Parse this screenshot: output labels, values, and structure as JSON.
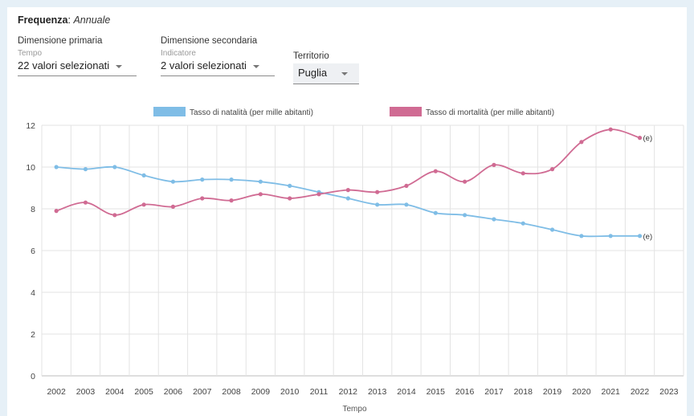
{
  "frequency": {
    "label": "Frequenza",
    "value": "Annuale"
  },
  "filters": {
    "primary": {
      "title": "Dimensione primaria",
      "subtitle": "Tempo",
      "selected": "22 valori selezionati"
    },
    "secondary": {
      "title": "Dimensione secondaria",
      "subtitle": "Indicatore",
      "selected": "2 valori selezionati"
    },
    "territory": {
      "title": "Territorio",
      "selected": "Puglia"
    }
  },
  "icons": {
    "dropdown": "caret-down-icon"
  },
  "colors": {
    "birth_series": "#7fbde6",
    "death_series": "#d06b93",
    "grid": "#e3e3e3",
    "background": "#e6f0f7"
  },
  "chart_data": {
    "type": "line",
    "xlabel": "Tempo",
    "ylabel": "",
    "categories": [
      "2002",
      "2003",
      "2004",
      "2005",
      "2006",
      "2007",
      "2008",
      "2009",
      "2010",
      "2011",
      "2012",
      "2013",
      "2014",
      "2015",
      "2016",
      "2017",
      "2018",
      "2019",
      "2020",
      "2021",
      "2022",
      "2023"
    ],
    "ylim": [
      0,
      12
    ],
    "yticks": [
      0,
      2,
      4,
      6,
      8,
      10,
      12
    ],
    "grid": true,
    "legend": "top-center",
    "series": [
      {
        "name": "Tasso di natalità (per mille abitanti)",
        "color": "#7fbde6",
        "values": [
          10.0,
          9.9,
          10.0,
          9.6,
          9.3,
          9.4,
          9.4,
          9.3,
          9.1,
          8.8,
          8.5,
          8.2,
          8.2,
          7.8,
          7.7,
          7.5,
          7.3,
          7.0,
          6.7,
          6.7,
          6.7,
          null
        ],
        "annotation": {
          "category": "2022",
          "text": "(e)"
        }
      },
      {
        "name": "Tasso di mortalità (per mille abitanti)",
        "color": "#d06b93",
        "values": [
          7.9,
          8.3,
          7.7,
          8.2,
          8.1,
          8.5,
          8.4,
          8.7,
          8.5,
          8.7,
          8.9,
          8.8,
          9.1,
          9.8,
          9.3,
          10.1,
          9.7,
          9.9,
          11.2,
          11.8,
          11.4,
          null
        ],
        "annotation": {
          "category": "2022",
          "text": "(e)"
        }
      }
    ]
  }
}
